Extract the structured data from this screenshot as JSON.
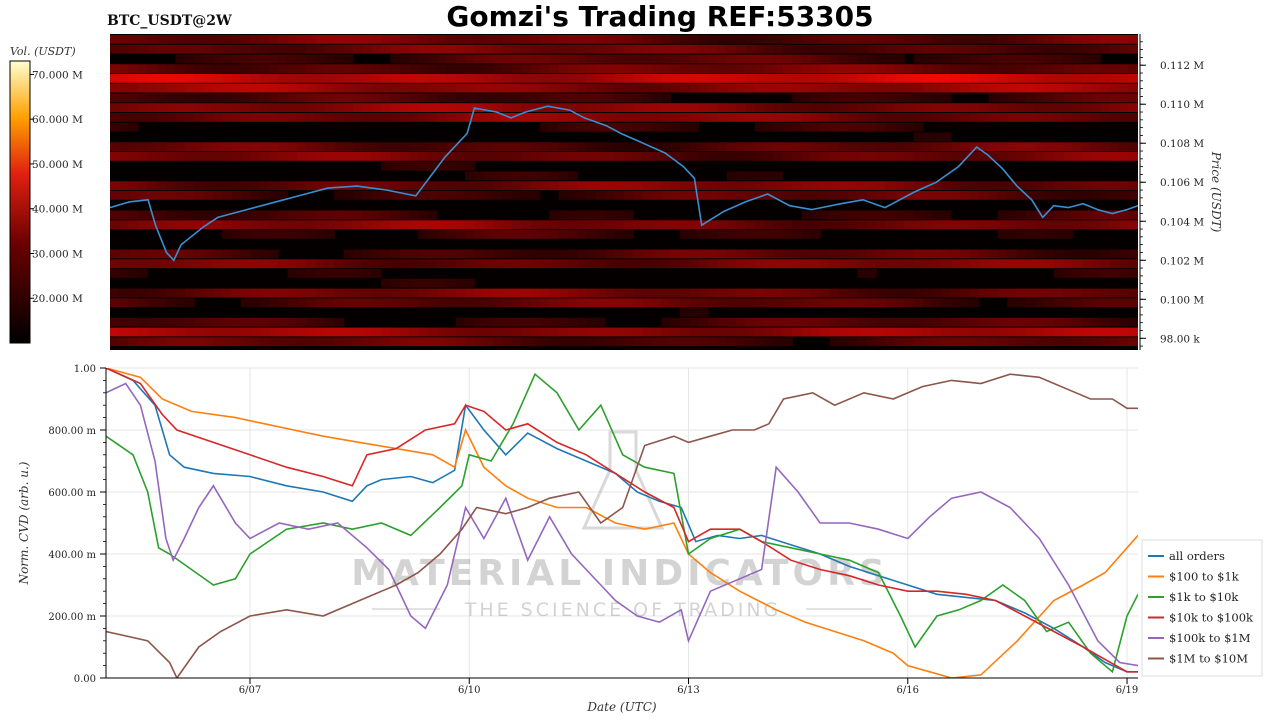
{
  "header": {
    "symbol": "BTC_USDT@2W",
    "title": "Gomzi's Trading REF:53305"
  },
  "watermark": {
    "line1": "MATERIAL INDICATORS",
    "line2": "THE SCIENCE OF TRADING"
  },
  "colors": {
    "price_line": "#3a8fd0",
    "heat_low": "#000000",
    "heat_high": "#ff2a1a",
    "grid": "#e6e6e6"
  },
  "chart_data": [
    {
      "type": "heatmap",
      "colorbar": {
        "label": "Vol. (USDT)",
        "ticks": [
          "70.000 M",
          "60.000 M",
          "50.000 M",
          "40.000 M",
          "30.000 M",
          "20.000 M"
        ],
        "tick_values": [
          70,
          60,
          50,
          40,
          30,
          20
        ],
        "range": [
          10,
          73
        ]
      },
      "y_axis": {
        "label": "Price (USDT)",
        "ticks": [
          "0.112 M",
          "0.110 M",
          "0.108 M",
          "0.106 M",
          "0.104 M",
          "0.102 M",
          "0.100 M",
          "98.00 k"
        ],
        "tick_values": [
          112000,
          110000,
          108000,
          106000,
          104000,
          102000,
          100000,
          98000
        ],
        "ylim": [
          97400,
          113600
        ]
      },
      "x_range_days": [
        5.03,
        19.05
      ],
      "price_series": {
        "x": [
          5.03,
          5.3,
          5.55,
          5.65,
          5.8,
          5.9,
          6.0,
          6.3,
          6.5,
          6.8,
          7.2,
          7.6,
          8.0,
          8.4,
          8.8,
          9.2,
          9.6,
          9.9,
          10.0,
          10.3,
          10.5,
          10.7,
          11.0,
          11.3,
          11.5,
          11.8,
          12.0,
          12.3,
          12.6,
          12.85,
          13.0,
          13.1,
          13.4,
          13.7,
          14.0,
          14.3,
          14.6,
          15.0,
          15.3,
          15.6,
          16.0,
          16.3,
          16.6,
          16.85,
          17.0,
          17.2,
          17.4,
          17.6,
          17.75,
          17.9,
          18.1,
          18.3,
          18.5,
          18.7,
          18.9,
          19.05
        ],
        "y": [
          104700,
          105000,
          105100,
          103800,
          102400,
          102000,
          102800,
          103700,
          104200,
          104500,
          104900,
          105300,
          105700,
          105800,
          105600,
          105300,
          107300,
          108500,
          109800,
          109600,
          109300,
          109600,
          109900,
          109700,
          109300,
          108900,
          108500,
          108000,
          107500,
          106800,
          106200,
          103800,
          104500,
          105000,
          105400,
          104800,
          104600,
          104900,
          105100,
          104700,
          105500,
          106000,
          106800,
          107800,
          107400,
          106700,
          105800,
          105100,
          104200,
          104800,
          104700,
          104900,
          104600,
          104400,
          104600,
          104800
        ]
      }
    },
    {
      "type": "line",
      "xlabel": "Date (UTC)",
      "ylabel": "Norm. CVD (arb. u.)",
      "x_ticks": [
        "6/07",
        "6/10",
        "6/13",
        "6/16",
        "6/19"
      ],
      "x_tick_values": [
        7,
        10,
        13,
        16,
        19
      ],
      "xlim": [
        5.03,
        19.15
      ],
      "y_ticks": [
        "1.00",
        "800.00 m",
        "600.00 m",
        "400.00 m",
        "200.00 m",
        "0.00"
      ],
      "y_tick_values": [
        1.0,
        0.8,
        0.6,
        0.4,
        0.2,
        0.0
      ],
      "ylim": [
        0,
        1
      ],
      "grid": true,
      "legend_position": "right",
      "series": [
        {
          "name": "all orders",
          "color": "#1f77b4",
          "x": [
            5.03,
            5.4,
            5.7,
            5.9,
            6.1,
            6.5,
            7.0,
            7.5,
            8.0,
            8.4,
            8.6,
            8.8,
            9.2,
            9.5,
            9.8,
            9.95,
            10.2,
            10.5,
            10.8,
            11.2,
            11.6,
            12.0,
            12.3,
            12.6,
            12.9,
            13.1,
            13.4,
            13.7,
            14.0,
            14.4,
            14.8,
            15.2,
            15.6,
            16.0,
            16.4,
            16.8,
            17.2,
            17.6,
            18.0,
            18.4,
            18.7,
            19.0,
            19.15
          ],
          "y": [
            1.0,
            0.96,
            0.88,
            0.72,
            0.68,
            0.66,
            0.65,
            0.62,
            0.6,
            0.57,
            0.62,
            0.64,
            0.65,
            0.63,
            0.67,
            0.88,
            0.8,
            0.72,
            0.79,
            0.74,
            0.7,
            0.66,
            0.6,
            0.57,
            0.55,
            0.44,
            0.46,
            0.45,
            0.46,
            0.43,
            0.4,
            0.36,
            0.33,
            0.3,
            0.27,
            0.26,
            0.25,
            0.21,
            0.16,
            0.1,
            0.05,
            0.02,
            0.02
          ]
        },
        {
          "name": "$100 to $1k",
          "color": "#ff7f0e",
          "x": [
            5.03,
            5.5,
            5.8,
            6.2,
            6.8,
            7.2,
            7.6,
            8.0,
            8.5,
            9.0,
            9.5,
            9.8,
            9.95,
            10.2,
            10.5,
            10.8,
            11.2,
            11.6,
            12.0,
            12.4,
            12.8,
            13.0,
            13.3,
            13.7,
            14.2,
            14.6,
            15.0,
            15.4,
            15.8,
            16.0,
            16.3,
            16.6,
            17.0,
            17.5,
            18.0,
            18.4,
            18.7,
            19.0,
            19.15
          ],
          "y": [
            1.0,
            0.97,
            0.9,
            0.86,
            0.84,
            0.82,
            0.8,
            0.78,
            0.76,
            0.74,
            0.72,
            0.68,
            0.8,
            0.68,
            0.62,
            0.58,
            0.55,
            0.55,
            0.5,
            0.48,
            0.5,
            0.4,
            0.34,
            0.28,
            0.22,
            0.18,
            0.15,
            0.12,
            0.08,
            0.04,
            0.02,
            0.0,
            0.01,
            0.12,
            0.25,
            0.3,
            0.34,
            0.42,
            0.46
          ]
        },
        {
          "name": "$1k to $10k",
          "color": "#2ca02c",
          "x": [
            5.03,
            5.4,
            5.6,
            5.75,
            5.9,
            6.2,
            6.5,
            6.8,
            7.0,
            7.5,
            8.0,
            8.4,
            8.8,
            9.2,
            9.6,
            9.9,
            10.0,
            10.3,
            10.6,
            10.9,
            11.2,
            11.5,
            11.8,
            12.1,
            12.4,
            12.8,
            13.0,
            13.3,
            13.7,
            14.0,
            14.4,
            14.8,
            15.2,
            15.6,
            15.9,
            16.1,
            16.4,
            16.7,
            17.0,
            17.3,
            17.6,
            17.9,
            18.2,
            18.5,
            18.8,
            19.0,
            19.15
          ],
          "y": [
            0.78,
            0.72,
            0.6,
            0.42,
            0.4,
            0.35,
            0.3,
            0.32,
            0.4,
            0.48,
            0.5,
            0.48,
            0.5,
            0.46,
            0.55,
            0.62,
            0.72,
            0.7,
            0.82,
            0.98,
            0.92,
            0.8,
            0.88,
            0.72,
            0.68,
            0.66,
            0.4,
            0.45,
            0.48,
            0.44,
            0.42,
            0.4,
            0.38,
            0.34,
            0.2,
            0.1,
            0.2,
            0.22,
            0.25,
            0.3,
            0.25,
            0.15,
            0.18,
            0.08,
            0.02,
            0.2,
            0.27
          ]
        },
        {
          "name": "$10k to $100k",
          "color": "#d62728",
          "x": [
            5.03,
            5.5,
            5.8,
            6.0,
            6.5,
            7.0,
            7.5,
            8.0,
            8.4,
            8.6,
            9.0,
            9.4,
            9.8,
            9.95,
            10.2,
            10.5,
            10.8,
            11.2,
            11.6,
            12.0,
            12.4,
            12.8,
            13.0,
            13.3,
            13.7,
            14.0,
            14.4,
            14.8,
            15.2,
            15.6,
            16.0,
            16.4,
            16.8,
            17.2,
            17.6,
            18.0,
            18.4,
            18.7,
            19.0,
            19.15
          ],
          "y": [
            1.0,
            0.95,
            0.85,
            0.8,
            0.76,
            0.72,
            0.68,
            0.65,
            0.62,
            0.72,
            0.74,
            0.8,
            0.82,
            0.88,
            0.86,
            0.8,
            0.82,
            0.76,
            0.72,
            0.66,
            0.6,
            0.55,
            0.44,
            0.48,
            0.48,
            0.44,
            0.38,
            0.35,
            0.33,
            0.3,
            0.28,
            0.28,
            0.27,
            0.25,
            0.2,
            0.15,
            0.1,
            0.06,
            0.02,
            0.02
          ]
        },
        {
          "name": "$100k to $1M",
          "color": "#9467bd",
          "x": [
            5.03,
            5.3,
            5.5,
            5.7,
            5.85,
            5.95,
            6.1,
            6.3,
            6.5,
            6.8,
            7.0,
            7.4,
            7.8,
            8.2,
            8.6,
            8.9,
            9.2,
            9.4,
            9.7,
            9.95,
            10.2,
            10.5,
            10.8,
            11.1,
            11.4,
            11.8,
            12.0,
            12.3,
            12.6,
            12.9,
            13.0,
            13.3,
            13.7,
            14.0,
            14.2,
            14.5,
            14.8,
            15.2,
            15.6,
            16.0,
            16.3,
            16.6,
            17.0,
            17.4,
            17.8,
            18.2,
            18.6,
            18.9,
            19.15
          ],
          "y": [
            0.92,
            0.95,
            0.88,
            0.7,
            0.45,
            0.38,
            0.45,
            0.55,
            0.62,
            0.5,
            0.45,
            0.5,
            0.48,
            0.5,
            0.42,
            0.35,
            0.2,
            0.16,
            0.3,
            0.55,
            0.45,
            0.58,
            0.38,
            0.52,
            0.4,
            0.3,
            0.25,
            0.2,
            0.18,
            0.22,
            0.12,
            0.28,
            0.32,
            0.35,
            0.68,
            0.6,
            0.5,
            0.5,
            0.48,
            0.45,
            0.52,
            0.58,
            0.6,
            0.55,
            0.45,
            0.3,
            0.12,
            0.05,
            0.04
          ]
        },
        {
          "name": "$1M to $10M",
          "color": "#8c564b",
          "x": [
            5.03,
            5.6,
            5.9,
            6.0,
            6.3,
            6.6,
            7.0,
            7.5,
            8.0,
            8.5,
            9.0,
            9.3,
            9.6,
            9.9,
            10.1,
            10.5,
            10.8,
            11.1,
            11.5,
            11.8,
            12.1,
            12.4,
            12.8,
            13.0,
            13.3,
            13.6,
            13.9,
            14.1,
            14.3,
            14.7,
            15.0,
            15.4,
            15.8,
            16.2,
            16.6,
            17.0,
            17.4,
            17.8,
            18.2,
            18.5,
            18.8,
            19.0,
            19.15
          ],
          "y": [
            0.15,
            0.12,
            0.05,
            0.0,
            0.1,
            0.15,
            0.2,
            0.22,
            0.2,
            0.25,
            0.3,
            0.34,
            0.4,
            0.48,
            0.55,
            0.53,
            0.55,
            0.58,
            0.6,
            0.5,
            0.55,
            0.75,
            0.78,
            0.76,
            0.78,
            0.8,
            0.8,
            0.82,
            0.9,
            0.92,
            0.88,
            0.92,
            0.9,
            0.94,
            0.96,
            0.95,
            0.98,
            0.97,
            0.93,
            0.9,
            0.9,
            0.87,
            0.87
          ]
        }
      ]
    }
  ]
}
